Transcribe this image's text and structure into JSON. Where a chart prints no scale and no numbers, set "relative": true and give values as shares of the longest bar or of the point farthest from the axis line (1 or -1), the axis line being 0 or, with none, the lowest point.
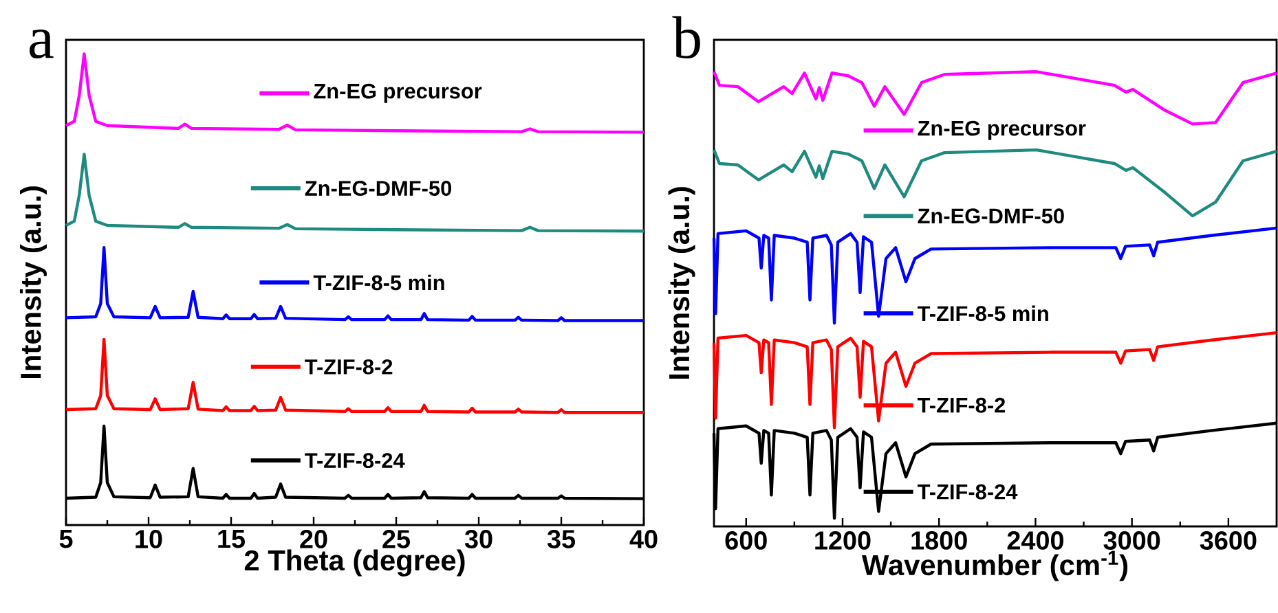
{
  "chart_data": [
    {
      "type": "line",
      "title": "a",
      "xlabel": "2 Theta (degree)",
      "ylabel": "Intensity (a.u.)",
      "relative": true,
      "legend": "center",
      "xlim": [
        5,
        40
      ],
      "xticks": [
        5,
        10,
        15,
        20,
        25,
        30,
        35,
        40
      ],
      "series": [
        {
          "name": "Zn-EG precursor",
          "color": "#ff00ff",
          "x": [
            5,
            5.5,
            5.8,
            6.1,
            6.4,
            6.8,
            7.5,
            11.8,
            12.2,
            12.6,
            17.9,
            18.4,
            18.9,
            25,
            32.6,
            33.1,
            33.6,
            40
          ],
          "values": [
            0.848,
            0.857,
            0.912,
            1.0,
            0.912,
            0.857,
            0.848,
            0.842,
            0.851,
            0.842,
            0.84,
            0.849,
            0.839,
            0.837,
            0.835,
            0.841,
            0.835,
            0.834
          ]
        },
        {
          "name": "Zn-EG-DMF-50",
          "color": "#1f8a80",
          "x": [
            5,
            5.5,
            5.8,
            6.1,
            6.4,
            6.8,
            7.5,
            11.8,
            12.2,
            12.6,
            17.9,
            18.4,
            18.9,
            25,
            32.6,
            33.1,
            33.6,
            40
          ],
          "values": [
            0.636,
            0.645,
            0.7,
            0.787,
            0.7,
            0.645,
            0.636,
            0.632,
            0.64,
            0.632,
            0.63,
            0.638,
            0.629,
            0.627,
            0.625,
            0.632,
            0.625,
            0.624
          ]
        },
        {
          "name": "T-ZIF-8-5 min",
          "color": "#0000ff",
          "x": [
            5,
            6.8,
            7.1,
            7.3,
            7.5,
            7.9,
            10.1,
            10.4,
            10.7,
            12.4,
            12.7,
            13.0,
            14.5,
            14.7,
            14.9,
            16.2,
            16.4,
            16.6,
            17.7,
            18.0,
            18.3,
            21.9,
            22.1,
            22.3,
            24.3,
            24.5,
            24.7,
            26.5,
            26.7,
            26.9,
            29.4,
            29.6,
            29.8,
            32.2,
            32.4,
            32.6,
            34.8,
            35.0,
            35.2,
            40
          ],
          "values": [
            0.44,
            0.442,
            0.47,
            0.589,
            0.47,
            0.442,
            0.44,
            0.464,
            0.44,
            0.441,
            0.496,
            0.441,
            0.438,
            0.446,
            0.438,
            0.438,
            0.447,
            0.438,
            0.439,
            0.464,
            0.439,
            0.436,
            0.442,
            0.436,
            0.436,
            0.444,
            0.436,
            0.436,
            0.449,
            0.436,
            0.435,
            0.443,
            0.435,
            0.435,
            0.441,
            0.435,
            0.434,
            0.44,
            0.434,
            0.434
          ]
        },
        {
          "name": "T-ZIF-8-2",
          "color": "#ff0000",
          "x": [
            5,
            6.8,
            7.1,
            7.3,
            7.5,
            7.9,
            10.1,
            10.4,
            10.7,
            12.4,
            12.7,
            13.0,
            14.5,
            14.7,
            14.9,
            16.2,
            16.4,
            16.6,
            17.7,
            18.0,
            18.3,
            21.9,
            22.1,
            22.3,
            24.3,
            24.5,
            24.7,
            26.5,
            26.7,
            26.9,
            29.4,
            29.6,
            29.8,
            32.2,
            32.4,
            32.6,
            34.8,
            35.0,
            35.2,
            40
          ],
          "values": [
            0.245,
            0.247,
            0.275,
            0.394,
            0.275,
            0.247,
            0.245,
            0.268,
            0.245,
            0.247,
            0.303,
            0.246,
            0.243,
            0.251,
            0.243,
            0.243,
            0.252,
            0.243,
            0.244,
            0.271,
            0.244,
            0.241,
            0.247,
            0.241,
            0.241,
            0.249,
            0.241,
            0.241,
            0.254,
            0.241,
            0.24,
            0.248,
            0.24,
            0.24,
            0.246,
            0.24,
            0.239,
            0.245,
            0.239,
            0.239
          ]
        },
        {
          "name": "T-ZIF-8-24",
          "color": "#000000",
          "x": [
            5,
            6.8,
            7.1,
            7.3,
            7.5,
            7.9,
            10.1,
            10.4,
            10.7,
            12.4,
            12.7,
            13.0,
            14.5,
            14.7,
            14.9,
            16.2,
            16.4,
            16.6,
            17.7,
            18.0,
            18.3,
            21.9,
            22.1,
            22.3,
            24.3,
            24.5,
            24.7,
            26.5,
            26.7,
            26.9,
            29.4,
            29.6,
            29.8,
            32.2,
            32.4,
            32.6,
            34.8,
            35.0,
            35.2,
            40
          ],
          "values": [
            0.057,
            0.059,
            0.09,
            0.21,
            0.09,
            0.06,
            0.058,
            0.085,
            0.059,
            0.06,
            0.12,
            0.06,
            0.057,
            0.065,
            0.057,
            0.057,
            0.067,
            0.057,
            0.059,
            0.087,
            0.059,
            0.057,
            0.063,
            0.057,
            0.057,
            0.065,
            0.057,
            0.058,
            0.071,
            0.058,
            0.057,
            0.065,
            0.057,
            0.057,
            0.063,
            0.057,
            0.057,
            0.062,
            0.057,
            0.056
          ]
        }
      ]
    },
    {
      "type": "line",
      "title": "b",
      "xlabel": "Wavenumber (cm$^{-1}$)",
      "ylabel": "Intensity (a.u.)",
      "relative": true,
      "legend": "center",
      "xlim": [
        400,
        3900
      ],
      "xticks": [
        600,
        1200,
        1800,
        2400,
        3000,
        3600
      ],
      "series": [
        {
          "name": "Zn-EG precursor",
          "color": "#ff00ff",
          "x": [
            400,
            434,
            549,
            677,
            834,
            886,
            963,
            1034,
            1055,
            1077,
            1134,
            1234,
            1320,
            1397,
            1463,
            1583,
            1691,
            1834,
            2406,
            2891,
            2963,
            3006,
            3206,
            3377,
            3520,
            3691,
            3900
          ],
          "values": [
            1.0,
            0.97,
            0.967,
            0.934,
            0.967,
            0.952,
            0.997,
            0.94,
            0.965,
            0.937,
            0.997,
            0.991,
            0.976,
            0.924,
            0.967,
            0.906,
            0.976,
            0.994,
            1.0,
            0.97,
            0.955,
            0.961,
            0.915,
            0.885,
            0.888,
            0.976,
            0.997
          ]
        },
        {
          "name": "Zn-EG-DMF-50",
          "color": "#1f8a80",
          "x": [
            400,
            434,
            549,
            677,
            834,
            886,
            963,
            1034,
            1055,
            1077,
            1134,
            1234,
            1320,
            1397,
            1463,
            1583,
            1691,
            1834,
            2406,
            2891,
            2963,
            3006,
            3206,
            3377,
            3520,
            3691,
            3900
          ],
          "values": [
            0.828,
            0.798,
            0.795,
            0.762,
            0.795,
            0.78,
            0.825,
            0.768,
            0.793,
            0.765,
            0.825,
            0.819,
            0.804,
            0.743,
            0.795,
            0.725,
            0.804,
            0.822,
            0.828,
            0.798,
            0.783,
            0.789,
            0.734,
            0.683,
            0.713,
            0.804,
            0.825
          ]
        },
        {
          "name": "T-ZIF-8-5 min",
          "color": "#0000ff",
          "x": [
            400,
            410,
            425,
            600,
            680,
            694,
            710,
            740,
            757,
            775,
            900,
            980,
            997,
            1015,
            1100,
            1130,
            1149,
            1170,
            1250,
            1290,
            1309,
            1330,
            1380,
            1424,
            1470,
            1530,
            1594,
            1650,
            1750,
            2500,
            2900,
            2930,
            2960,
            3110,
            3135,
            3160,
            3500,
            3900
          ],
          "values": [
            0.634,
            0.468,
            0.644,
            0.65,
            0.634,
            0.568,
            0.64,
            0.634,
            0.498,
            0.64,
            0.634,
            0.625,
            0.498,
            0.634,
            0.64,
            0.619,
            0.447,
            0.625,
            0.644,
            0.625,
            0.514,
            0.637,
            0.625,
            0.462,
            0.589,
            0.613,
            0.538,
            0.589,
            0.61,
            0.613,
            0.613,
            0.589,
            0.616,
            0.619,
            0.595,
            0.625,
            0.64,
            0.656
          ]
        },
        {
          "name": "T-ZIF-8-2",
          "color": "#ff0000",
          "x": [
            400,
            410,
            425,
            600,
            680,
            694,
            710,
            740,
            757,
            775,
            900,
            980,
            997,
            1015,
            1100,
            1130,
            1149,
            1170,
            1250,
            1290,
            1309,
            1330,
            1380,
            1424,
            1470,
            1530,
            1594,
            1650,
            1750,
            2500,
            2900,
            2930,
            2960,
            3110,
            3135,
            3160,
            3500,
            3900
          ],
          "values": [
            0.404,
            0.238,
            0.414,
            0.42,
            0.404,
            0.338,
            0.41,
            0.404,
            0.268,
            0.41,
            0.404,
            0.395,
            0.268,
            0.404,
            0.41,
            0.389,
            0.217,
            0.395,
            0.414,
            0.395,
            0.284,
            0.407,
            0.395,
            0.232,
            0.359,
            0.383,
            0.308,
            0.359,
            0.38,
            0.383,
            0.383,
            0.359,
            0.386,
            0.389,
            0.365,
            0.395,
            0.41,
            0.426
          ]
        },
        {
          "name": "T-ZIF-8-24",
          "color": "#000000",
          "x": [
            400,
            410,
            425,
            600,
            680,
            694,
            710,
            740,
            757,
            775,
            900,
            980,
            997,
            1015,
            1100,
            1130,
            1149,
            1170,
            1250,
            1290,
            1309,
            1330,
            1380,
            1424,
            1470,
            1530,
            1594,
            1650,
            1750,
            2500,
            2900,
            2930,
            2960,
            3110,
            3135,
            3160,
            3500,
            3900
          ],
          "values": [
            0.205,
            0.039,
            0.215,
            0.221,
            0.205,
            0.139,
            0.211,
            0.205,
            0.069,
            0.211,
            0.205,
            0.196,
            0.069,
            0.205,
            0.211,
            0.19,
            0.018,
            0.196,
            0.215,
            0.196,
            0.085,
            0.208,
            0.196,
            0.033,
            0.16,
            0.184,
            0.109,
            0.16,
            0.181,
            0.184,
            0.184,
            0.16,
            0.187,
            0.19,
            0.166,
            0.196,
            0.211,
            0.227
          ]
        }
      ]
    }
  ]
}
